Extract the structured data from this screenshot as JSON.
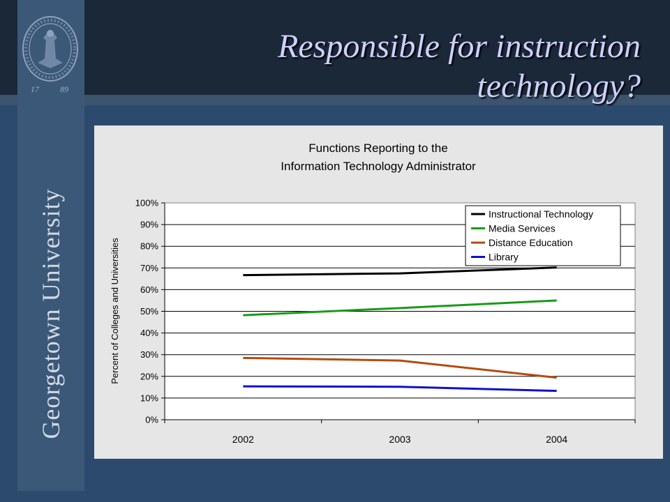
{
  "slide": {
    "title_lines": [
      "Responsible for instruction",
      "technology?"
    ],
    "brand": "Georgetown University",
    "seal_years": [
      "17",
      "89"
    ],
    "background_color": "#2c4a6e",
    "sidebar_color": "#3b5878",
    "title_color": "#cfd0ff"
  },
  "chart_data": {
    "type": "line",
    "title_lines": [
      "Functions Reporting to the",
      "Information Technology Administrator"
    ],
    "xlabel": "",
    "ylabel": "Percent of Colleges and Universities",
    "categories": [
      "2002",
      "2003",
      "2004"
    ],
    "y_ticks": [
      "0%",
      "10%",
      "20%",
      "30%",
      "40%",
      "50%",
      "60%",
      "70%",
      "80%",
      "90%",
      "100%"
    ],
    "ylim": [
      0,
      100
    ],
    "grid": true,
    "legend_position": "top-right",
    "series": [
      {
        "name": "Instructional Technology",
        "color": "#000000",
        "values": [
          66.7,
          67.5,
          70.2
        ]
      },
      {
        "name": "Media Services",
        "color": "#1a9a1a",
        "values": [
          48.2,
          51.5,
          55.0
        ]
      },
      {
        "name": "Distance Education",
        "color": "#b34b10",
        "values": [
          28.5,
          27.3,
          19.4
        ]
      },
      {
        "name": "Library",
        "color": "#1010cc",
        "values": [
          15.4,
          15.2,
          13.3
        ]
      }
    ]
  }
}
